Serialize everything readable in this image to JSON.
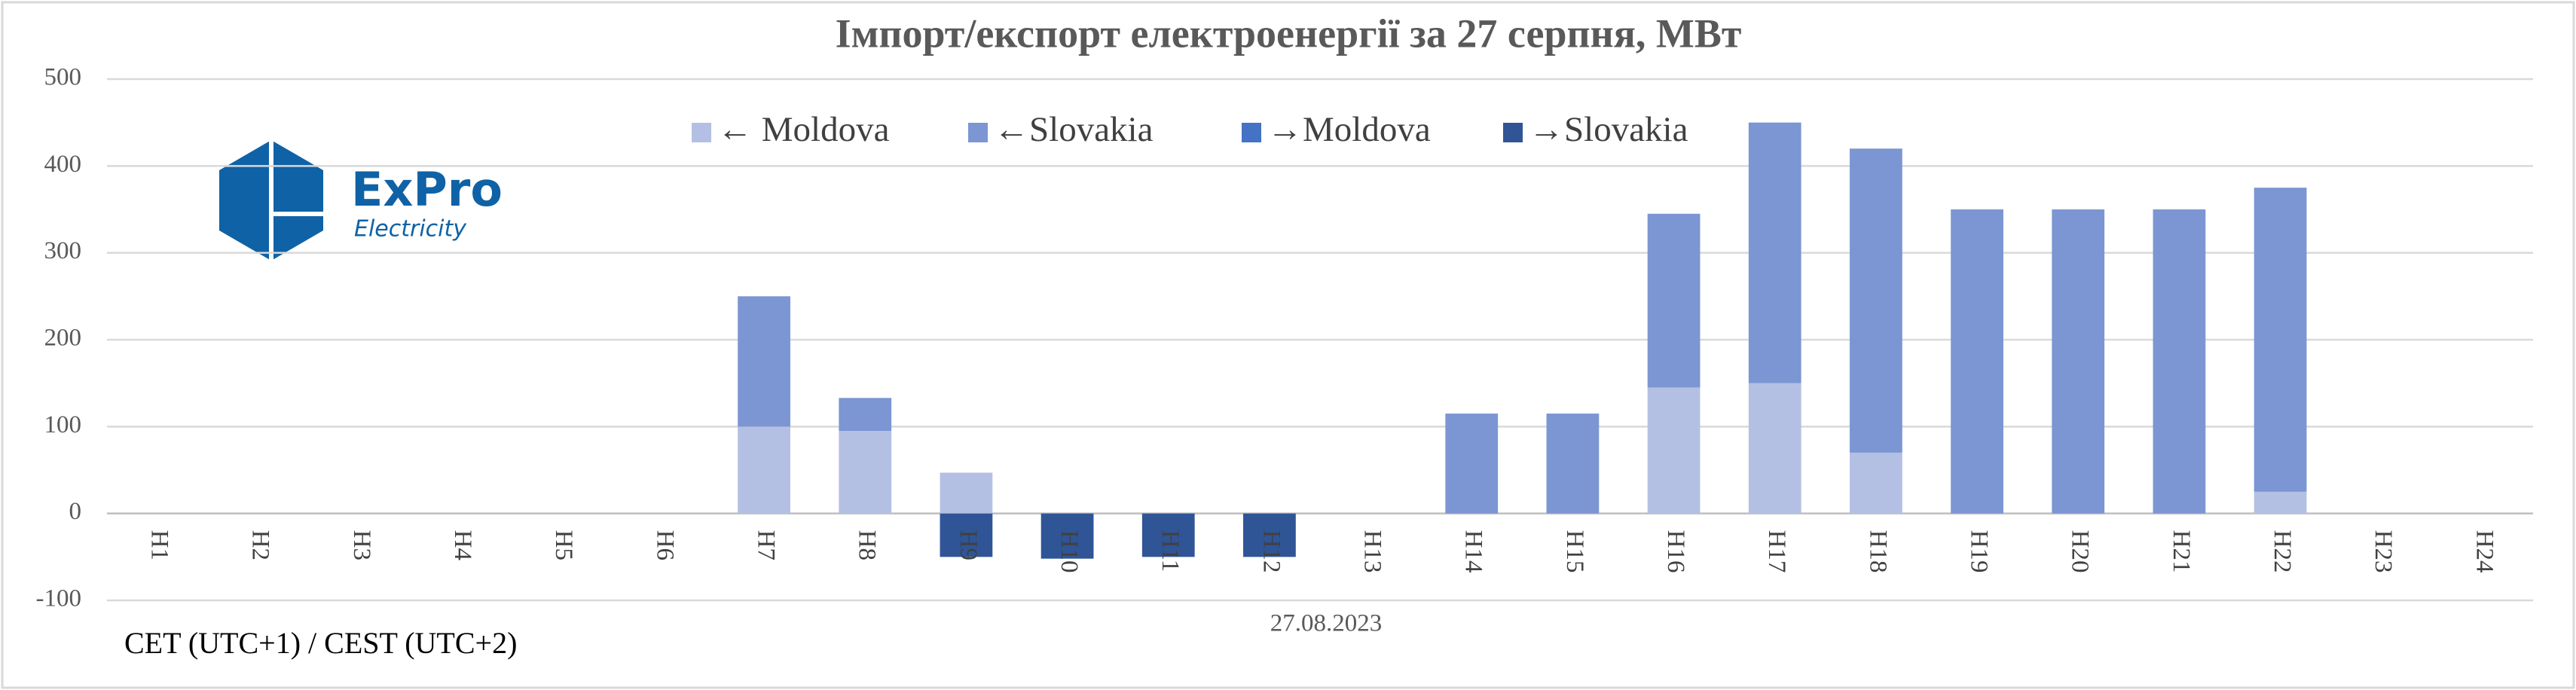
{
  "chart_data": {
    "type": "bar",
    "stacked": true,
    "title": "Імпорт/експорт електроенергії за 27 серпня, МВт",
    "x_label": "27.08.2023",
    "note": "CET (UTC+1) / CEST (UTC+2)",
    "logo": {
      "name": "ExPro",
      "tagline": "Electricity"
    },
    "categories": [
      "H1",
      "H2",
      "H3",
      "H4",
      "H5",
      "H6",
      "H7",
      "H8",
      "H9",
      "H10",
      "H11",
      "H12",
      "H13",
      "H14",
      "H15",
      "H16",
      "H17",
      "H18",
      "H19",
      "H20",
      "H21",
      "H22",
      "H23",
      "H24"
    ],
    "series": [
      {
        "name": "← Moldova",
        "color": "#b4c0e3",
        "values": [
          null,
          null,
          null,
          null,
          null,
          null,
          100,
          95,
          47,
          null,
          null,
          null,
          null,
          null,
          null,
          145,
          150,
          70,
          null,
          null,
          null,
          25,
          null,
          null
        ]
      },
      {
        "name": "←Slovakia",
        "color": "#7b96d2",
        "values": [
          null,
          null,
          null,
          null,
          null,
          null,
          150,
          38,
          null,
          null,
          null,
          null,
          null,
          115,
          115,
          200,
          300,
          350,
          350,
          350,
          350,
          350,
          null,
          null
        ]
      },
      {
        "name": "→Moldova",
        "color": "#4472c4",
        "values": [
          null,
          null,
          null,
          null,
          null,
          null,
          null,
          null,
          null,
          null,
          null,
          null,
          null,
          null,
          null,
          null,
          null,
          null,
          null,
          null,
          null,
          null,
          null,
          null
        ]
      },
      {
        "name": "→Slovakia",
        "color": "#2f5597",
        "values": [
          null,
          null,
          null,
          null,
          null,
          null,
          null,
          null,
          -50,
          -52,
          -50,
          -50,
          null,
          null,
          null,
          null,
          null,
          null,
          null,
          null,
          null,
          null,
          null,
          null
        ]
      }
    ],
    "ylim": [
      -100,
      500
    ],
    "yticks": [
      -100,
      0,
      100,
      200,
      300,
      400,
      500
    ],
    "grid": true
  }
}
